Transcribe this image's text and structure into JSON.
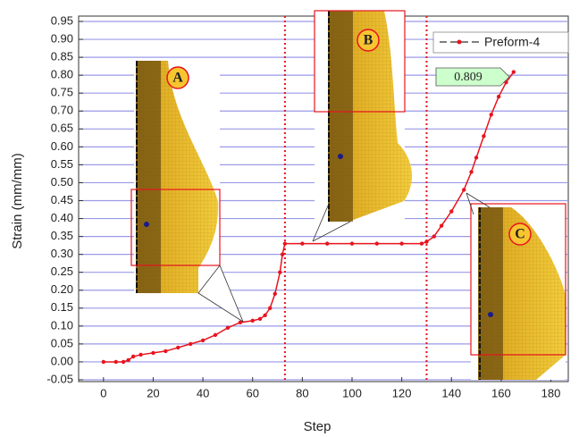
{
  "chart_data": {
    "type": "line",
    "x_label": "Step",
    "y_label": "Strain (mm/mm)",
    "xlim": [
      -10,
      187
    ],
    "ylim": [
      -0.05,
      0.95
    ],
    "xticks": [
      0,
      20,
      40,
      60,
      80,
      100,
      120,
      140,
      160,
      180
    ],
    "yticks": [
      0.95,
      {
        "value": 0.9,
        "label": "0.90"
      },
      0.85,
      {
        "value": 0.8,
        "label": "0.80"
      },
      0.75,
      {
        "value": 0.7,
        "label": "0.70"
      },
      0.65,
      {
        "value": 0.6,
        "label": "0.60"
      },
      0.55,
      {
        "value": 0.5,
        "label": "0.50"
      },
      0.45,
      {
        "value": 0.4,
        "label": "0.40"
      },
      0.35,
      {
        "value": 0.3,
        "label": "0.30"
      },
      0.25,
      {
        "value": 0.2,
        "label": "0.20"
      },
      0.15,
      {
        "value": 0.1,
        "label": "0.10"
      },
      0.05,
      {
        "value": 0,
        "label": "0.00"
      },
      -0.05
    ],
    "grid": true,
    "vlines": [
      73,
      130
    ],
    "series": [
      {
        "name": "Preform-4",
        "color": "#e8141e",
        "x": [
          0,
          5,
          8,
          10,
          12,
          15,
          20,
          25,
          30,
          35,
          40,
          45,
          50,
          55,
          60,
          63,
          65,
          67,
          69,
          71,
          72,
          73,
          80,
          90,
          100,
          110,
          120,
          128,
          130,
          133,
          136,
          140,
          145,
          148,
          150,
          153,
          156,
          159,
          162,
          165
        ],
        "values": [
          0,
          0,
          0,
          0.005,
          0.015,
          0.02,
          0.025,
          0.03,
          0.04,
          0.05,
          0.06,
          0.075,
          0.095,
          0.11,
          0.115,
          0.12,
          0.13,
          0.15,
          0.19,
          0.25,
          0.3,
          0.33,
          0.33,
          0.33,
          0.33,
          0.33,
          0.33,
          0.33,
          0.335,
          0.35,
          0.38,
          0.42,
          0.48,
          0.53,
          0.57,
          0.63,
          0.69,
          0.74,
          0.78,
          0.809
        ]
      }
    ],
    "annotation": {
      "text": "0.809",
      "x": 165,
      "y": 0.809
    },
    "insets": [
      "A",
      "B",
      "C"
    ]
  }
}
